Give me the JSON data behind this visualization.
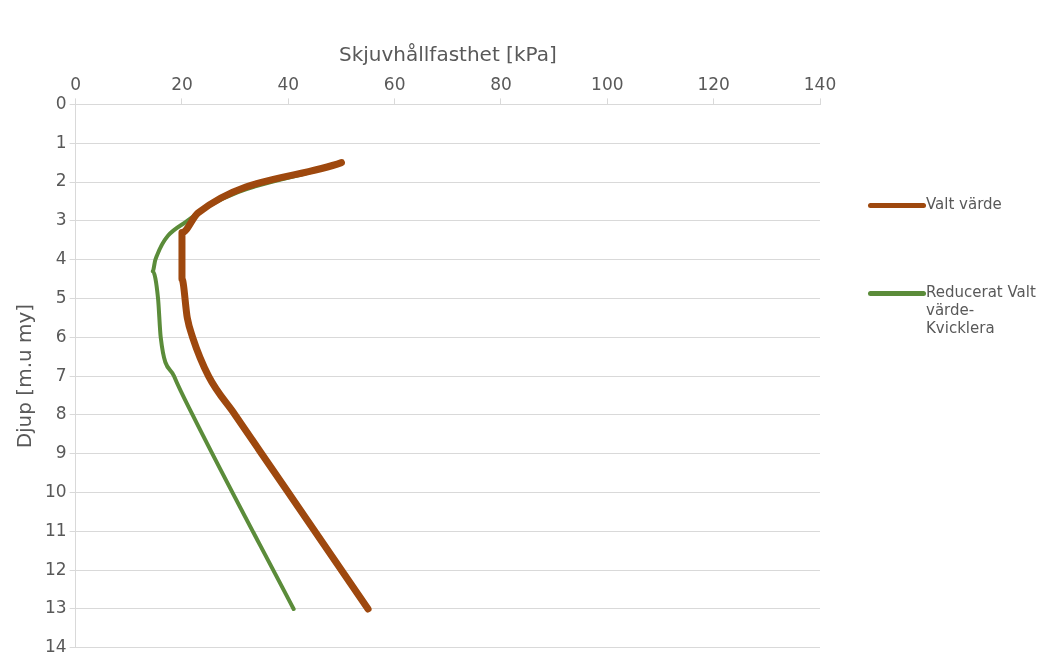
{
  "chart_data": {
    "type": "line",
    "xlabel": "Skjuvhållfasthet [kPa]",
    "ylabel": "Djup [m.u my]",
    "xlim": [
      0,
      140
    ],
    "xticks": [
      0,
      20,
      40,
      60,
      80,
      100,
      120,
      140
    ],
    "ylim": [
      14,
      0
    ],
    "yticks": [
      0,
      1,
      2,
      3,
      4,
      5,
      6,
      7,
      8,
      9,
      10,
      11,
      12,
      13,
      14
    ],
    "grid": "y",
    "legend": "right",
    "marker": "none",
    "line_style": "solid",
    "series": [
      {
        "name": "Valt värde",
        "color": "#9e480e",
        "x": [
          50,
          23,
          20,
          20,
          21,
          22,
          25,
          30,
          40,
          55
        ],
        "values": [
          1.5,
          2.8,
          3.3,
          4.5,
          5.5,
          6,
          7,
          8,
          10,
          13
        ]
      },
      {
        "name": "Reducerat Valt värde-Kvicklera",
        "color": "#5b8c3a",
        "x": [
          50,
          21,
          15,
          14.5,
          15.5,
          16,
          18.5,
          22,
          41
        ],
        "values": [
          1.5,
          3,
          4,
          4.3,
          5,
          6,
          7,
          8,
          13
        ]
      }
    ]
  }
}
